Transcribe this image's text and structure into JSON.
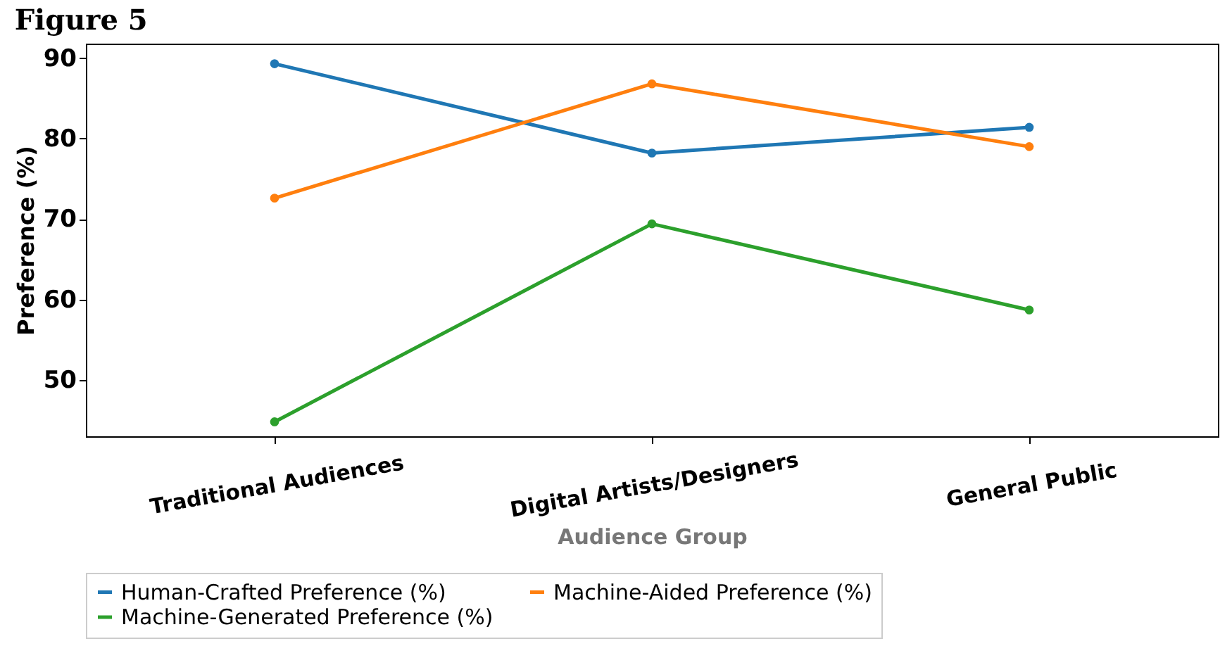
{
  "chart_data": {
    "type": "line",
    "title": "Figure 5",
    "xlabel": "Audience Group",
    "ylabel": "Preference (%)",
    "categories": [
      "Traditional Audiences",
      "Digital Artists/Designers",
      "General Public"
    ],
    "series": [
      {
        "name": "Human-Crafted Preference (%)",
        "color": "#1f77b4",
        "values": [
          89.3,
          78.2,
          81.4
        ]
      },
      {
        "name": "Machine-Aided Preference (%)",
        "color": "#ff7f0e",
        "values": [
          72.6,
          86.8,
          79.0
        ]
      },
      {
        "name": "Machine-Generated Preference (%)",
        "color": "#2ca02c",
        "values": [
          44.8,
          69.4,
          58.7
        ]
      }
    ],
    "ylim": [
      43,
      91.8
    ],
    "yticks": [
      50,
      60,
      70,
      80,
      90
    ],
    "grid": false,
    "legend": "bottom",
    "marker": "circle",
    "line_style": "solid"
  }
}
